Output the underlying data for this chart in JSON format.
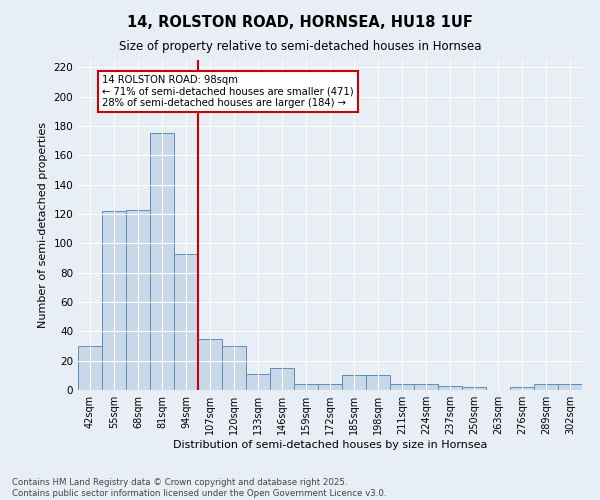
{
  "title1": "14, ROLSTON ROAD, HORNSEA, HU18 1UF",
  "title2": "Size of property relative to semi-detached houses in Hornsea",
  "xlabel": "Distribution of semi-detached houses by size in Hornsea",
  "ylabel": "Number of semi-detached properties",
  "categories": [
    "42sqm",
    "55sqm",
    "68sqm",
    "81sqm",
    "94sqm",
    "107sqm",
    "120sqm",
    "133sqm",
    "146sqm",
    "159sqm",
    "172sqm",
    "185sqm",
    "198sqm",
    "211sqm",
    "224sqm",
    "237sqm",
    "250sqm",
    "263sqm",
    "276sqm",
    "289sqm",
    "302sqm"
  ],
  "values": [
    30,
    122,
    123,
    175,
    93,
    35,
    30,
    11,
    15,
    4,
    4,
    10,
    10,
    4,
    4,
    3,
    2,
    0,
    2,
    4,
    4
  ],
  "bar_color": "#c8d8e8",
  "bar_edge_color": "#5b8db8",
  "vline_x": 4.5,
  "vline_color": "#cc0000",
  "annotation_title": "14 ROLSTON ROAD: 98sqm",
  "annotation_line1": "← 71% of semi-detached houses are smaller (471)",
  "annotation_line2": "28% of semi-detached houses are larger (184) →",
  "annotation_box_color": "#cc0000",
  "ylim": [
    0,
    225
  ],
  "yticks": [
    0,
    20,
    40,
    60,
    80,
    100,
    120,
    140,
    160,
    180,
    200,
    220
  ],
  "background_color": "#e8eef5",
  "footer1": "Contains HM Land Registry data © Crown copyright and database right 2025.",
  "footer2": "Contains public sector information licensed under the Open Government Licence v3.0."
}
